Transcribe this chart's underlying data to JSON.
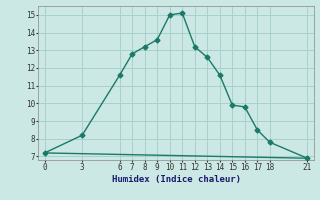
{
  "line1_x": [
    0,
    3,
    6,
    7,
    8,
    9,
    10,
    11,
    12,
    13,
    14,
    15,
    16,
    17,
    18,
    21
  ],
  "line1_y": [
    7.2,
    8.2,
    11.6,
    12.8,
    13.2,
    13.6,
    15.0,
    15.1,
    13.2,
    12.6,
    11.6,
    9.9,
    9.8,
    8.5,
    7.8,
    6.9
  ],
  "line2_x": [
    0,
    21
  ],
  "line2_y": [
    7.2,
    6.9
  ],
  "color": "#1a7a6a",
  "bg_color": "#cce8e4",
  "grid_color": "#a8d0cc",
  "xlabel": "Humidex (Indice chaleur)",
  "ylim": [
    6.8,
    15.5
  ],
  "xlim": [
    -0.5,
    21.5
  ],
  "yticks": [
    7,
    8,
    9,
    10,
    11,
    12,
    13,
    14,
    15
  ],
  "xticks": [
    0,
    3,
    6,
    7,
    8,
    9,
    10,
    11,
    12,
    13,
    14,
    15,
    16,
    17,
    18,
    21
  ],
  "marker": "D",
  "markersize": 2.5,
  "linewidth": 1.0
}
